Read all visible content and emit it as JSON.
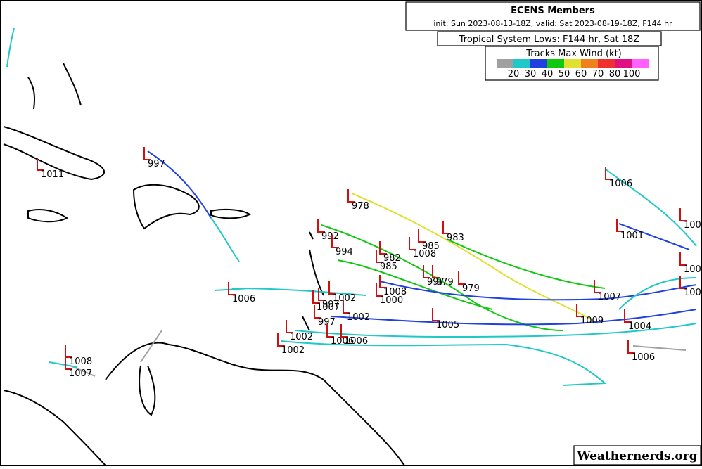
{
  "header": {
    "title": "ECENS Members",
    "subtitle": "init: Sun 2023-08-13-18Z, valid: Sat 2023-08-19-18Z, F144 hr",
    "lows_title": "Tropical System Lows: F144 hr, Sat 18Z"
  },
  "legend": {
    "title": "Tracks Max Wind (kt)",
    "colors": [
      "#a0a0a0",
      "#20c8c8",
      "#2040e0",
      "#10c810",
      "#e0e030",
      "#f08020",
      "#f03030",
      "#e01080",
      "#ff60ff"
    ],
    "labels": [
      "20",
      "30",
      "40",
      "50",
      "60",
      "70",
      "80",
      "100"
    ]
  },
  "lows": [
    "997",
    "1011",
    "978",
    "992",
    "983",
    "994",
    "985",
    "1008",
    "982",
    "985",
    "997",
    "979",
    "979",
    "1008",
    "1000",
    "1006",
    "1002",
    "997",
    "1007",
    "1002",
    "997",
    "1005",
    "1007",
    "1004",
    "1009",
    "1006",
    "1001",
    "100",
    "100",
    "100",
    "1006",
    "1002",
    "1006",
    "1006",
    "1002",
    "1008",
    "1007"
  ],
  "footer": {
    "credit": "Weathernerds.org"
  }
}
